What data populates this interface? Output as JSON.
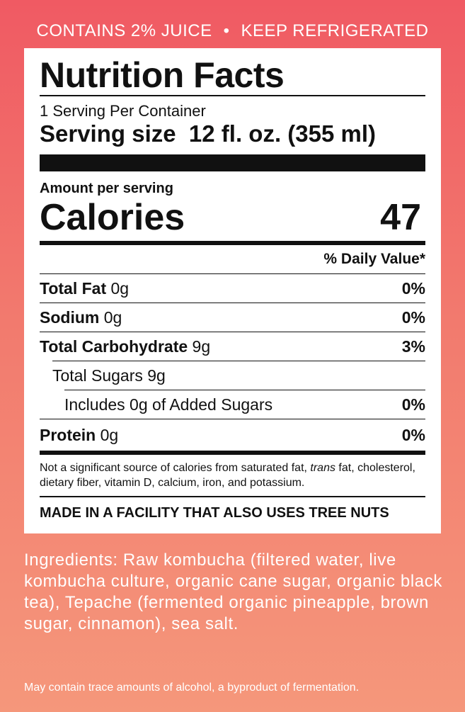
{
  "banner": {
    "left": "CONTAINS 2% JUICE",
    "separator": "•",
    "right": "KEEP REFRIGERATED"
  },
  "label": {
    "title": "Nutrition Facts",
    "servings_per_container": "1 Serving Per Container",
    "serving_size": "Serving size  12 fl. oz. (355 ml)",
    "amount_per_serving": "Amount per serving",
    "calories_label": "Calories",
    "calories_value": "47",
    "daily_value_header": "% Daily Value*",
    "nutrients": [
      {
        "name": "Total Fat",
        "amount": "0g",
        "pct": "0%"
      },
      {
        "name": "Sodium",
        "amount": "0g",
        "pct": "0%"
      },
      {
        "name": "Total Carbohydrate",
        "amount": "9g",
        "pct": "3%"
      },
      {
        "name": "Total Sugars 9g",
        "amount": "",
        "pct": ""
      },
      {
        "name": "Includes 0g of Added Sugars",
        "amount": "",
        "pct": "0%"
      },
      {
        "name": "Protein",
        "amount": "0g",
        "pct": "0%"
      }
    ],
    "footnote_part1": "Not a significant source of calories from saturated fat, ",
    "footnote_italic": "trans",
    "footnote_part2": " fat, cholesterol, dietary fiber, vitamin D, calcium, iron, and potassium.",
    "allergen": "MADE IN A FACILITY THAT ALSO USES TREE NUTS"
  },
  "ingredients": "Ingredients: Raw kombucha (filtered water, live kombucha culture, organic cane sugar, organic black tea), Tepache (fermented organic pineapple, brown sugar, cinnamon), sea salt.",
  "disclaimer": "May contain trace amounts of alcohol, a byproduct of fermentation.",
  "colors": {
    "background_top": "#f05a63",
    "background_bottom": "#f5977b",
    "panel": "#ffffff",
    "ink": "#111111"
  }
}
